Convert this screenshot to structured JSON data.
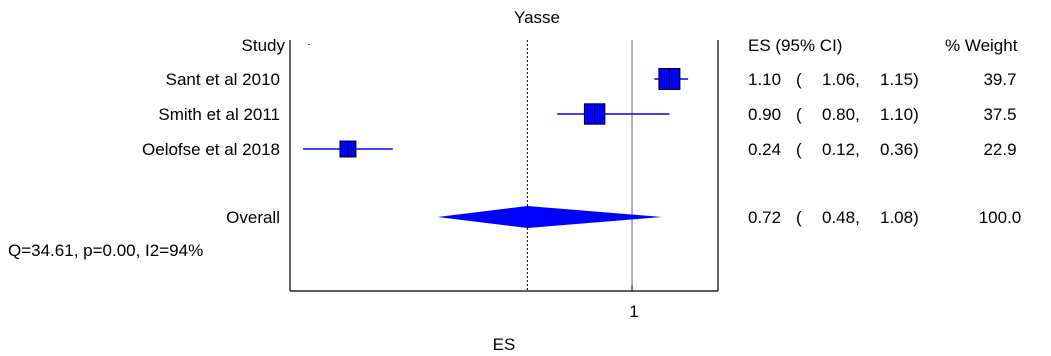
{
  "chart_data": {
    "type": "forest",
    "title": "Yasse",
    "xlabel": "ES",
    "xlim": [
      0.085,
      1.23
    ],
    "xticks": [
      {
        "value": 1.0,
        "label": "1"
      }
    ],
    "reference_line": 1.0,
    "overall_line": 0.72,
    "headers": {
      "study": "Study",
      "es_ci": "ES (95% CI)",
      "weight": "% Weight"
    },
    "studies": [
      {
        "label": "Sant et al 2010",
        "es": 1.1,
        "lo": 1.06,
        "hi": 1.15,
        "weight": 39.7,
        "es_text": "1.10",
        "lo_text": "1.06",
        "hi_text": "1.15",
        "weight_text": "39.7"
      },
      {
        "label": "Smith et al 2011",
        "es": 0.9,
        "lo": 0.8,
        "hi": 1.1,
        "weight": 37.5,
        "es_text": "0.90",
        "lo_text": "0.80",
        "hi_text": "1.10",
        "weight_text": "37.5"
      },
      {
        "label": "Oelofse et al 2018",
        "es": 0.24,
        "lo": 0.12,
        "hi": 0.36,
        "weight": 22.9,
        "es_text": "0.24",
        "lo_text": "0.12",
        "hi_text": "0.36",
        "weight_text": "22.9"
      }
    ],
    "overall": {
      "label": "Overall",
      "es": 0.72,
      "lo": 0.48,
      "hi": 1.08,
      "weight": 100.0,
      "es_text": "0.72",
      "lo_text": "0.48",
      "hi_text": "1.08",
      "weight_text": "100.0"
    },
    "heterogeneity": "Q=34.61, p=0.00, I2=94%",
    "colors": {
      "marker": "#0000ff",
      "title": "#0000ff",
      "axis": "#000000",
      "refline": "#666666"
    }
  }
}
